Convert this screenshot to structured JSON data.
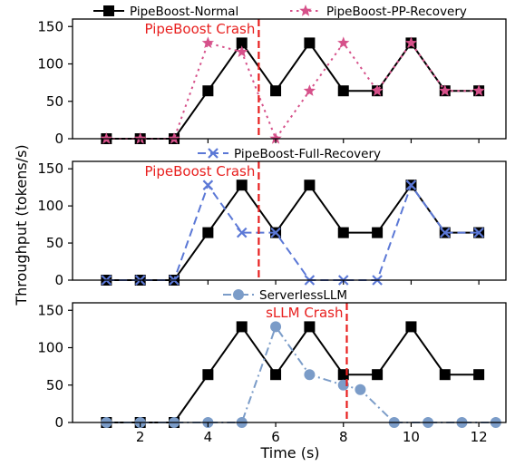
{
  "chart_data": {
    "type": "line",
    "xlabel": "Time (s)",
    "ylabel": "Throughput (tokens/s)",
    "xlim": [
      0,
      12.8
    ],
    "x_ticks": [
      2,
      4,
      6,
      8,
      10,
      12
    ],
    "ylim": [
      0,
      160
    ],
    "y_ticks": [
      0,
      50,
      100,
      150
    ],
    "grid": false,
    "panels": [
      {
        "legend_position": "top",
        "crash_label": "PipeBoost Crash",
        "crash_x": 5.5,
        "series": [
          {
            "name": "PipeBoost-Normal",
            "color": "#000000",
            "dash": "solid",
            "marker": "square",
            "x": [
              1,
              2,
              3,
              4,
              5,
              6,
              7,
              8,
              9,
              10,
              11,
              12
            ],
            "y": [
              0,
              0,
              0,
              64,
              128,
              64,
              128,
              64,
              64,
              128,
              64,
              64
            ]
          },
          {
            "name": "PipeBoost-PP-Recovery",
            "color": "#d6518a",
            "dash": "dotted",
            "marker": "star",
            "x": [
              1,
              2,
              3,
              4,
              5,
              6,
              7,
              8,
              9,
              10,
              11,
              12
            ],
            "y": [
              0,
              0,
              0,
              128,
              116,
              0,
              64,
              128,
              64,
              128,
              64,
              64
            ]
          }
        ]
      },
      {
        "legend_position": "top",
        "crash_label": "PipeBoost Crash",
        "crash_x": 5.5,
        "series": [
          {
            "name": "",
            "color": "#000000",
            "dash": "solid",
            "marker": "square",
            "x": [
              1,
              2,
              3,
              4,
              5,
              6,
              7,
              8,
              9,
              10,
              11,
              12
            ],
            "y": [
              0,
              0,
              0,
              64,
              128,
              64,
              128,
              64,
              64,
              128,
              64,
              64
            ]
          },
          {
            "name": "PipeBoost-Full-Recovery",
            "color": "#5b78d6",
            "dash": "dashed",
            "marker": "x",
            "x": [
              1,
              2,
              3,
              4,
              5,
              6,
              7,
              8,
              9,
              10,
              11,
              12
            ],
            "y": [
              0,
              0,
              0,
              128,
              64,
              64,
              0,
              0,
              0,
              128,
              64,
              64
            ]
          }
        ]
      },
      {
        "legend_position": "top",
        "crash_label": "sLLM Crash",
        "crash_x": 8.1,
        "series": [
          {
            "name": "",
            "color": "#000000",
            "dash": "solid",
            "marker": "square",
            "x": [
              1,
              2,
              3,
              4,
              5,
              6,
              7,
              8,
              9,
              10,
              11,
              12
            ],
            "y": [
              0,
              0,
              0,
              64,
              128,
              64,
              128,
              64,
              64,
              128,
              64,
              64
            ]
          },
          {
            "name": "ServerlessLLM",
            "color": "#7b9cc8",
            "dash": "dashdot",
            "marker": "circle",
            "x": [
              1,
              2,
              3,
              4,
              5,
              6,
              7,
              8,
              8.5,
              9.5,
              10.5,
              11.5,
              12.5
            ],
            "y": [
              0,
              0,
              0,
              0,
              0,
              128,
              64,
              50,
              44,
              0,
              0,
              0,
              0
            ]
          }
        ]
      }
    ]
  }
}
